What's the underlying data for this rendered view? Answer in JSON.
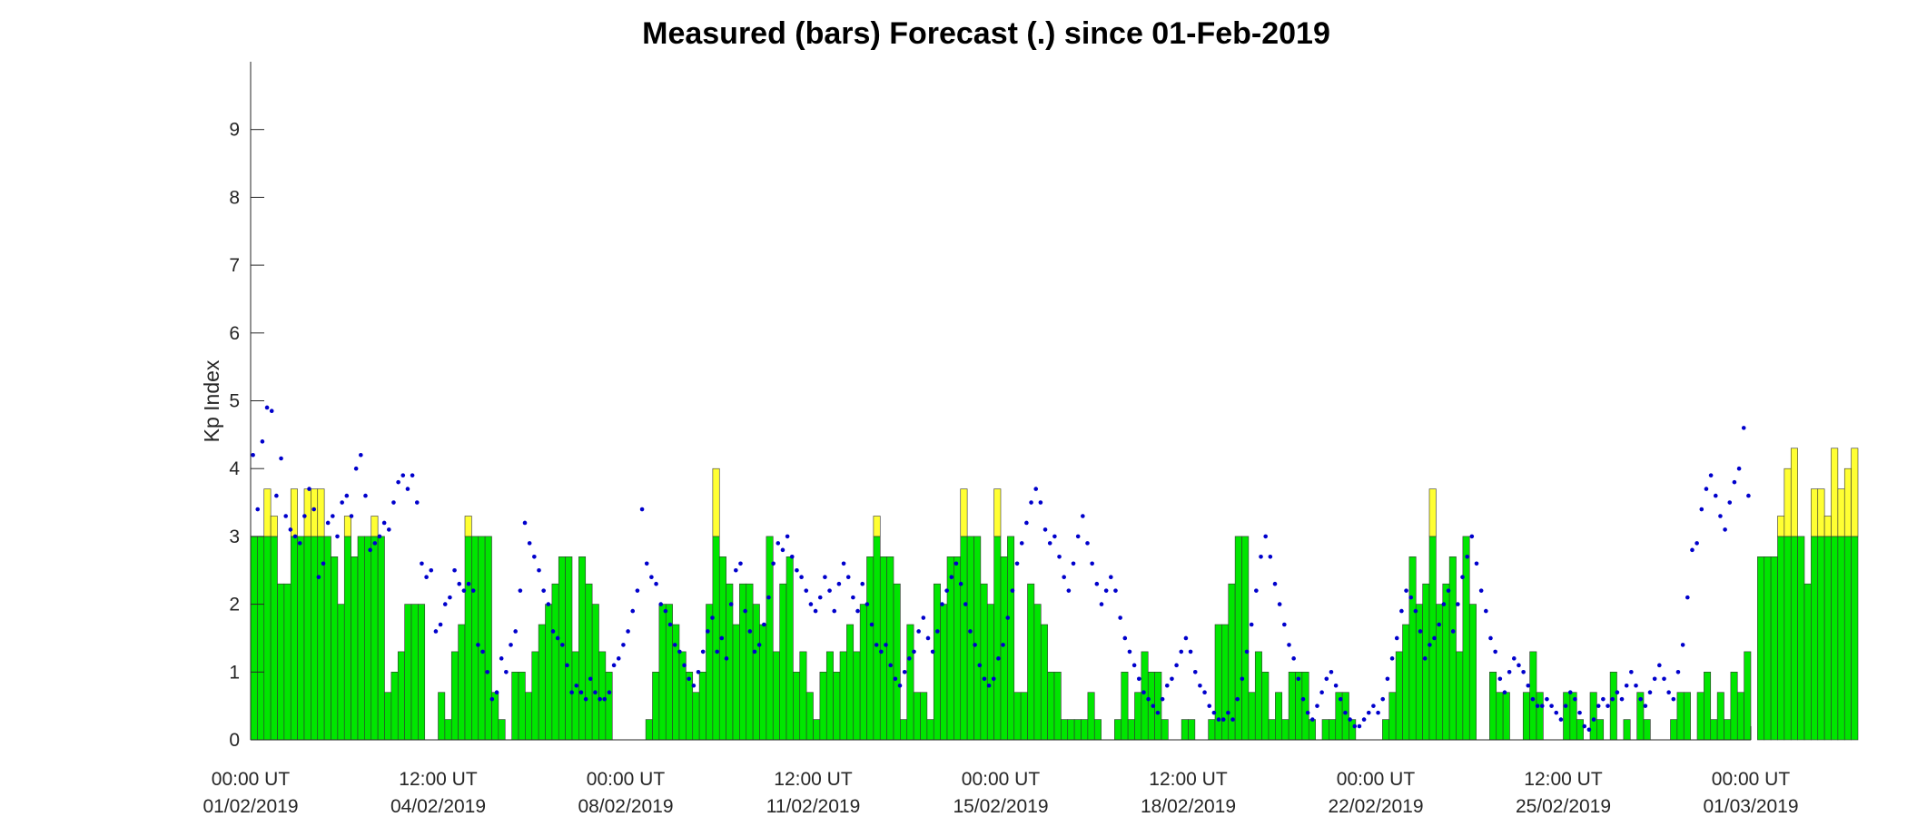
{
  "chart_data": {
    "type": "bar",
    "title": "Measured (bars) Forecast (.) since 01-Feb-2019",
    "xlabel": "",
    "ylabel": "Kp Index",
    "ylim": [
      0,
      10
    ],
    "yticks": [
      0,
      1,
      2,
      3,
      4,
      5,
      6,
      7,
      8,
      9
    ],
    "x_unit": "days since 00:00 UT 01/02/2019",
    "xlim": [
      0,
      28
    ],
    "xticks": [
      {
        "value": 0,
        "line1": "00:00 UT",
        "line2": "01/02/2019"
      },
      {
        "value": 3.5,
        "line1": "12:00 UT",
        "line2": "04/02/2019"
      },
      {
        "value": 7,
        "line1": "00:00 UT",
        "line2": "08/02/2019"
      },
      {
        "value": 10.5,
        "line1": "12:00 UT",
        "line2": "11/02/2019"
      },
      {
        "value": 14,
        "line1": "00:00 UT",
        "line2": "15/02/2019"
      },
      {
        "value": 17.5,
        "line1": "12:00 UT",
        "line2": "18/02/2019"
      },
      {
        "value": 21,
        "line1": "00:00 UT",
        "line2": "22/02/2019"
      },
      {
        "value": 24.5,
        "line1": "12:00 UT",
        "line2": "25/02/2019"
      },
      {
        "value": 28,
        "line1": "00:00 UT",
        "line2": "01/03/2019"
      }
    ],
    "threshold": 3,
    "colors": {
      "below_threshold": "#00e600",
      "above_threshold": "#ffff33",
      "bar_edge": "#333333",
      "forecast_dots": "#0000cc"
    },
    "bar_interval_hours": 3,
    "measured": [
      3,
      3,
      3.7,
      3.3,
      2.3,
      2.3,
      3.7,
      3,
      3.7,
      3.7,
      3.7,
      3,
      2.7,
      2,
      3.3,
      2.7,
      3,
      3,
      3.3,
      3,
      0.7,
      1,
      1.3,
      2,
      2,
      2,
      0,
      0,
      0.7,
      0.3,
      1.3,
      1.7,
      3.3,
      3,
      3,
      3,
      0.7,
      0.3,
      0,
      1,
      1,
      0.7,
      1.3,
      1.7,
      2,
      2.3,
      2.7,
      2.7,
      1.3,
      2.7,
      2.3,
      2,
      1.3,
      1,
      0,
      0,
      0,
      0,
      0,
      0.3,
      1,
      2,
      2,
      1.7,
      1.3,
      1,
      0.7,
      1,
      2,
      4,
      2.7,
      2.3,
      1.7,
      2.3,
      2.3,
      2,
      1.7,
      3,
      1.3,
      2.3,
      2.7,
      1,
      1.3,
      0.7,
      0.3,
      1,
      1.3,
      1,
      1.3,
      1.7,
      1.3,
      2,
      2.7,
      3.3,
      2.7,
      2.7,
      2.3,
      0.3,
      1.7,
      0.7,
      0.7,
      0.3,
      2.3,
      2,
      2.7,
      2.7,
      3.7,
      3,
      3,
      2.3,
      2,
      3.7,
      2.7,
      3,
      0.7,
      0.7,
      2.3,
      2,
      1.7,
      1,
      1,
      0.3,
      0.3,
      0.3,
      0.3,
      0.7,
      0.3,
      0,
      0,
      0.3,
      1,
      0.3,
      0.7,
      1.3,
      1,
      1,
      0.3,
      0,
      0,
      0.3,
      0.3,
      0,
      0,
      0.3,
      1.7,
      1.7,
      2.3,
      3,
      3,
      0.7,
      1.3,
      1,
      0.3,
      0.7,
      0.3,
      1,
      1,
      1,
      0.3,
      0,
      0.3,
      0.3,
      0.7,
      0.7,
      0.3,
      0,
      0,
      0,
      0,
      0.3,
      0.7,
      1.3,
      1.7,
      2.7,
      2,
      2.3,
      3.7,
      2,
      2.3,
      2.7,
      1.3,
      3,
      2,
      0,
      0,
      1,
      0.7,
      0.7,
      0,
      0,
      0.7,
      1.3,
      0.7,
      0,
      0,
      0,
      0.7,
      0.7,
      0.3,
      0,
      0.7,
      0.3,
      0,
      1,
      0,
      0.3,
      0,
      0.7,
      0.3,
      0,
      0,
      0,
      0.3,
      0.7,
      0.7,
      0,
      0.7,
      1,
      0.3,
      0.7,
      0.3,
      1,
      0.7,
      1.3,
      0,
      2.7,
      2.7,
      2.7,
      3.3,
      4,
      4.3,
      3,
      2.3,
      3.7,
      3.7,
      3.3,
      4.3,
      3.7,
      4,
      4.3
    ],
    "forecast": [
      4.2,
      3.4,
      4.4,
      4.9,
      4.85,
      3.6,
      4.15,
      3.3,
      3.1,
      3.0,
      2.9,
      3.3,
      3.7,
      3.4,
      2.4,
      2.6,
      3.2,
      3.3,
      3.0,
      3.5,
      3.6,
      3.3,
      4.0,
      4.2,
      3.6,
      2.8,
      2.9,
      3.0,
      3.2,
      3.1,
      3.5,
      3.8,
      3.9,
      3.7,
      3.9,
      3.5,
      2.6,
      2.4,
      2.5,
      1.6,
      1.7,
      2.0,
      2.1,
      2.5,
      2.3,
      2.2,
      2.3,
      2.2,
      1.4,
      1.3,
      1.0,
      0.6,
      0.7,
      1.2,
      1.0,
      1.4,
      1.6,
      2.2,
      3.2,
      2.9,
      2.7,
      2.5,
      2.2,
      2.0,
      1.6,
      1.5,
      1.4,
      1.1,
      0.7,
      0.8,
      0.7,
      0.6,
      0.9,
      0.7,
      0.6,
      0.6,
      0.7,
      1.1,
      1.2,
      1.4,
      1.6,
      1.9,
      2.2,
      3.4,
      2.6,
      2.4,
      2.3,
      2.0,
      1.9,
      1.7,
      1.4,
      1.3,
      1.1,
      0.9,
      0.8,
      1.0,
      1.3,
      1.6,
      1.8,
      1.3,
      1.5,
      1.2,
      2.0,
      2.5,
      2.6,
      1.9,
      1.6,
      1.3,
      1.4,
      1.7,
      2.1,
      2.6,
      2.9,
      2.8,
      3.0,
      2.7,
      2.5,
      2.4,
      2.2,
      2.0,
      1.9,
      2.1,
      2.4,
      2.2,
      1.9,
      2.3,
      2.6,
      2.4,
      2.1,
      1.9,
      2.3,
      2.0,
      1.7,
      1.4,
      1.3,
      1.4,
      1.1,
      0.9,
      0.8,
      1.0,
      1.2,
      1.3,
      1.6,
      1.8,
      1.5,
      1.3,
      1.6,
      2.0,
      2.2,
      2.4,
      2.6,
      2.3,
      2.0,
      1.6,
      1.4,
      1.1,
      0.9,
      0.8,
      0.9,
      1.2,
      1.4,
      1.8,
      2.2,
      2.6,
      2.9,
      3.2,
      3.5,
      3.7,
      3.5,
      3.1,
      2.9,
      3.0,
      2.7,
      2.4,
      2.2,
      2.6,
      3.0,
      3.3,
      2.9,
      2.6,
      2.3,
      2.0,
      2.2,
      2.4,
      2.2,
      1.8,
      1.5,
      1.3,
      1.1,
      0.9,
      0.7,
      0.6,
      0.5,
      0.4,
      0.6,
      0.8,
      0.9,
      1.1,
      1.3,
      1.5,
      1.3,
      1.0,
      0.8,
      0.7,
      0.5,
      0.4,
      0.3,
      0.3,
      0.4,
      0.3,
      0.6,
      0.9,
      1.3,
      1.7,
      2.2,
      2.7,
      3.0,
      2.7,
      2.3,
      2.0,
      1.7,
      1.4,
      1.2,
      0.9,
      0.6,
      0.4,
      0.3,
      0.5,
      0.7,
      0.9,
      1.0,
      0.8,
      0.6,
      0.4,
      0.3,
      0.2,
      0.2,
      0.3,
      0.4,
      0.5,
      0.4,
      0.6,
      0.9,
      1.2,
      1.5,
      1.9,
      2.2,
      2.1,
      1.9,
      1.6,
      1.2,
      1.4,
      1.5,
      1.7,
      2.0,
      2.2,
      1.6,
      2.0,
      2.4,
      2.7,
      3.0,
      2.6,
      2.2,
      1.9,
      1.5,
      1.3,
      0.9,
      0.7,
      1.0,
      1.2,
      1.1,
      1.0,
      0.8,
      0.6,
      0.5,
      0.5,
      0.6,
      0.5,
      0.4,
      0.3,
      0.5,
      0.7,
      0.6,
      0.4,
      0.2,
      0.15,
      0.3,
      0.5,
      0.6,
      0.5,
      0.6,
      0.7,
      0.6,
      0.8,
      1.0,
      0.8,
      0.6,
      0.5,
      0.7,
      0.9,
      1.1,
      0.9,
      0.7,
      0.6,
      1.0,
      1.4,
      2.1,
      2.8,
      2.9,
      3.4,
      3.7,
      3.9,
      3.6,
      3.3,
      3.1,
      3.5,
      3.8,
      4.0,
      4.6,
      3.6
    ]
  }
}
